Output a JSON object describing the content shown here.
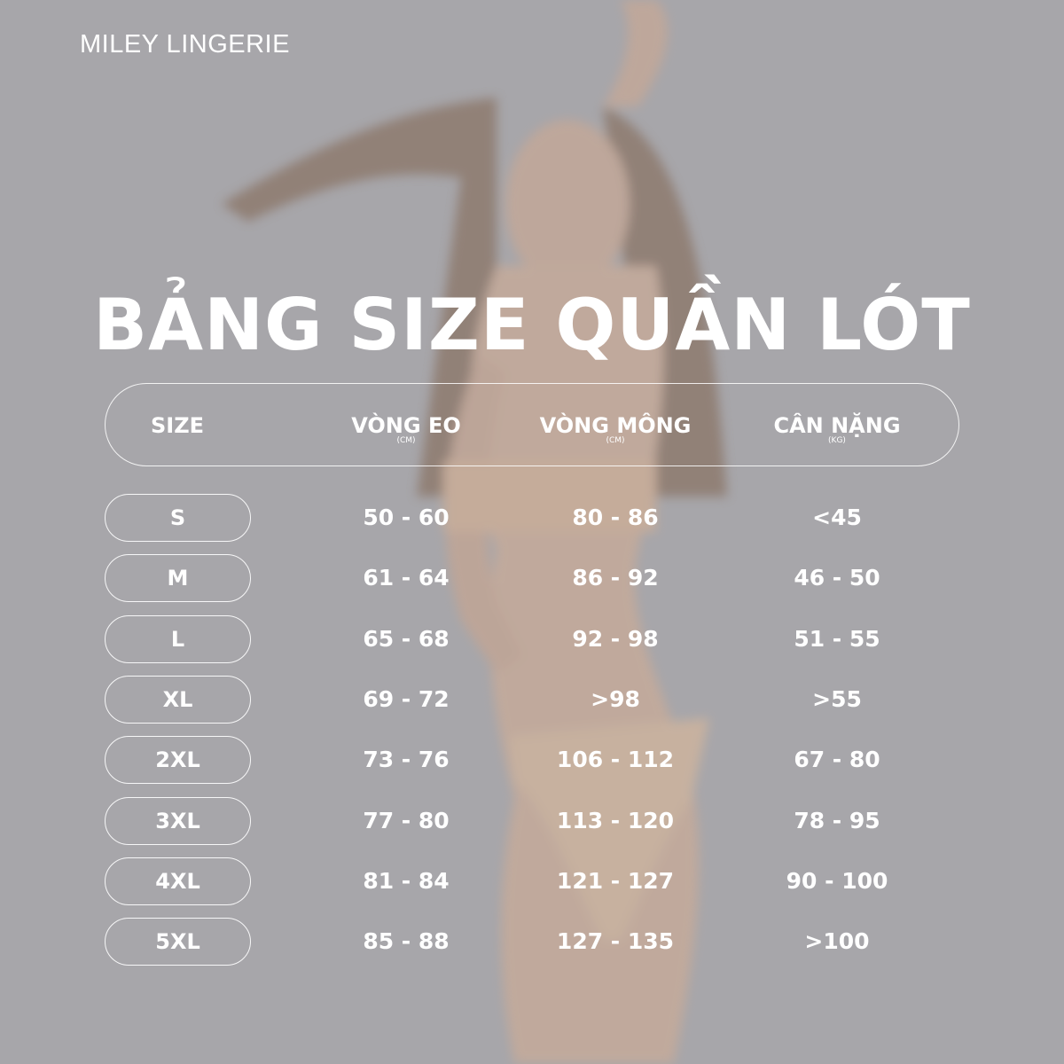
{
  "brand": "MILEY LINGERIE",
  "title": "BẢNG SIZE QUẦN LÓT",
  "colors": {
    "background": "#a7a6aa",
    "text": "#ffffff",
    "skin": "#c9ab98",
    "hair": "#7a6050"
  },
  "columns": [
    {
      "label": "SIZE",
      "unit": ""
    },
    {
      "label": "VÒNG EO",
      "unit": "(CM)"
    },
    {
      "label": "VÒNG MÔNG",
      "unit": "(CM)"
    },
    {
      "label": "CÂN NẶNG",
      "unit": "(KG)"
    }
  ],
  "rows": [
    {
      "size": "S",
      "waist": "50 - 60",
      "hip": "80 - 86",
      "weight": "<45"
    },
    {
      "size": "M",
      "waist": "61 - 64",
      "hip": "86 - 92",
      "weight": "46 - 50"
    },
    {
      "size": "L",
      "waist": "65 - 68",
      "hip": "92 - 98",
      "weight": "51 - 55"
    },
    {
      "size": "XL",
      "waist": "69 - 72",
      "hip": ">98",
      "weight": ">55"
    },
    {
      "size": "2XL",
      "waist": "73 - 76",
      "hip": "106 - 112",
      "weight": "67 - 80"
    },
    {
      "size": "3XL",
      "waist": "77 - 80",
      "hip": "113 - 120",
      "weight": "78 - 95"
    },
    {
      "size": "4XL",
      "waist": "81 - 84",
      "hip": "121 - 127",
      "weight": "90 - 100"
    },
    {
      "size": "5XL",
      "waist": "85 - 88",
      "hip": "127 - 135",
      "weight": ">100"
    }
  ]
}
